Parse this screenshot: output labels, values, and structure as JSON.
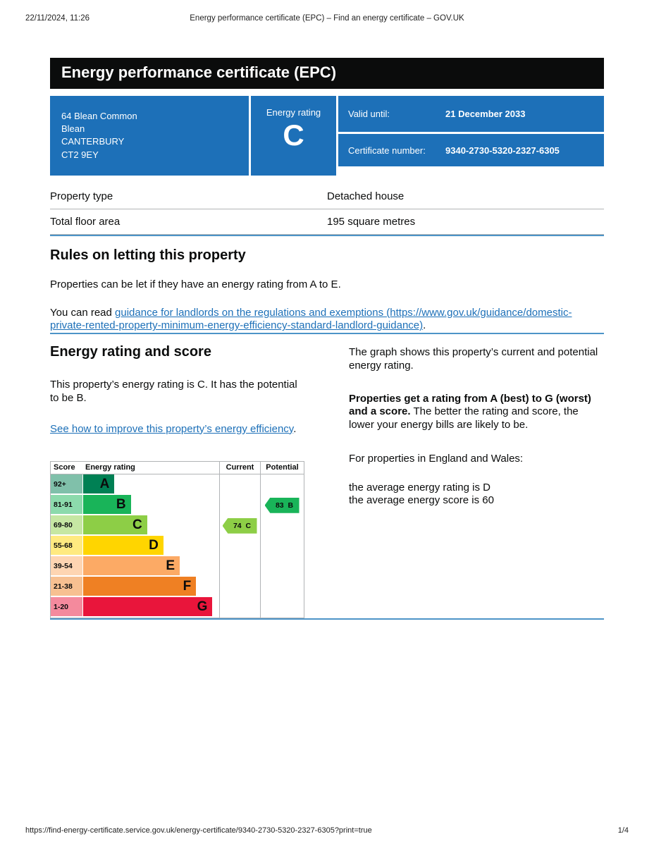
{
  "print_header": {
    "datetime": "22/11/2024, 11:26",
    "title": "Energy performance certificate (EPC) – Find an energy certificate – GOV.UK"
  },
  "banner": {
    "title": "Energy performance certificate (EPC)"
  },
  "summary": {
    "address_line1": "64 Blean Common",
    "address_line2": "Blean",
    "address_line3": "CANTERBURY",
    "address_line4": "CT2 9EY",
    "energy_rating_label": "Energy rating",
    "energy_rating": "C",
    "valid_until_label": "Valid until:",
    "valid_until": "21 December 2033",
    "certificate_number_label": "Certificate number:",
    "certificate_number": "9340-2730-5320-2327-6305"
  },
  "property_table": {
    "rows": [
      {
        "label": "Property type",
        "value": "Detached house"
      },
      {
        "label": "Total floor area",
        "value": "195 square metres"
      }
    ]
  },
  "rules_section": {
    "heading": "Rules on letting this property",
    "paragraph1": "Properties can be let if they have an energy rating from A to E.",
    "paragraph2_prefix": "You can read ",
    "link_text": "guidance for landlords on the regulations and exemptions (https://www.gov.uk/guidance/domestic-private-rented-property-minimum-energy-efficiency-standard-landlord-guidance)",
    "paragraph2_suffix": "."
  },
  "rating_section": {
    "heading": "Energy rating and score",
    "intro": "This property’s energy rating is C. It has the potential to be B.",
    "improve_link": "See how to improve this property’s energy efficiency",
    "improve_link_suffix": ".",
    "right": {
      "p1": "The graph shows this property’s current and potential energy rating.",
      "p2_bold": "Properties get a rating from A (best) to G (worst) and a score.",
      "p2_rest": " The better the rating and score, the lower your energy bills are likely to be.",
      "p3": "For properties in England and Wales:",
      "p4_line1": "the average energy rating is D",
      "p4_line2": "the average energy score is 60"
    }
  },
  "chart_data": {
    "type": "bar",
    "title": "Energy rating and score chart",
    "headers": {
      "score": "Score",
      "rating": "Energy rating",
      "current": "Current",
      "potential": "Potential"
    },
    "bands": [
      {
        "score": "92+",
        "letter": "A",
        "color": "#008054",
        "tint": "#80c0aa",
        "width_pct": 23
      },
      {
        "score": "81-91",
        "letter": "B",
        "color": "#19b459",
        "tint": "#8cdaac",
        "width_pct": 35
      },
      {
        "score": "69-80",
        "letter": "C",
        "color": "#8dce46",
        "tint": "#c6e7a3",
        "width_pct": 47
      },
      {
        "score": "55-68",
        "letter": "D",
        "color": "#ffd500",
        "tint": "#ffea80",
        "width_pct": 59
      },
      {
        "score": "39-54",
        "letter": "E",
        "color": "#fcaa65",
        "tint": "#fed5b2",
        "width_pct": 71
      },
      {
        "score": "21-38",
        "letter": "F",
        "color": "#ef8023",
        "tint": "#f7c091",
        "width_pct": 83
      },
      {
        "score": "1-20",
        "letter": "G",
        "color": "#e9153b",
        "tint": "#f48a9d",
        "width_pct": 95
      }
    ],
    "current": {
      "score": 74,
      "letter": "C",
      "color": "#8dce46"
    },
    "potential": {
      "score": 83,
      "letter": "B",
      "color": "#19b459"
    }
  },
  "colors": {
    "govuk_blue": "#1d70b8",
    "banner_black": "#0b0c0c",
    "divider_blue": "#4d94c8",
    "border_grey": "#b1b4b6"
  },
  "footer": {
    "url": "https://find-energy-certificate.service.gov.uk/energy-certificate/9340-2730-5320-2327-6305?print=true",
    "page": "1/4"
  }
}
